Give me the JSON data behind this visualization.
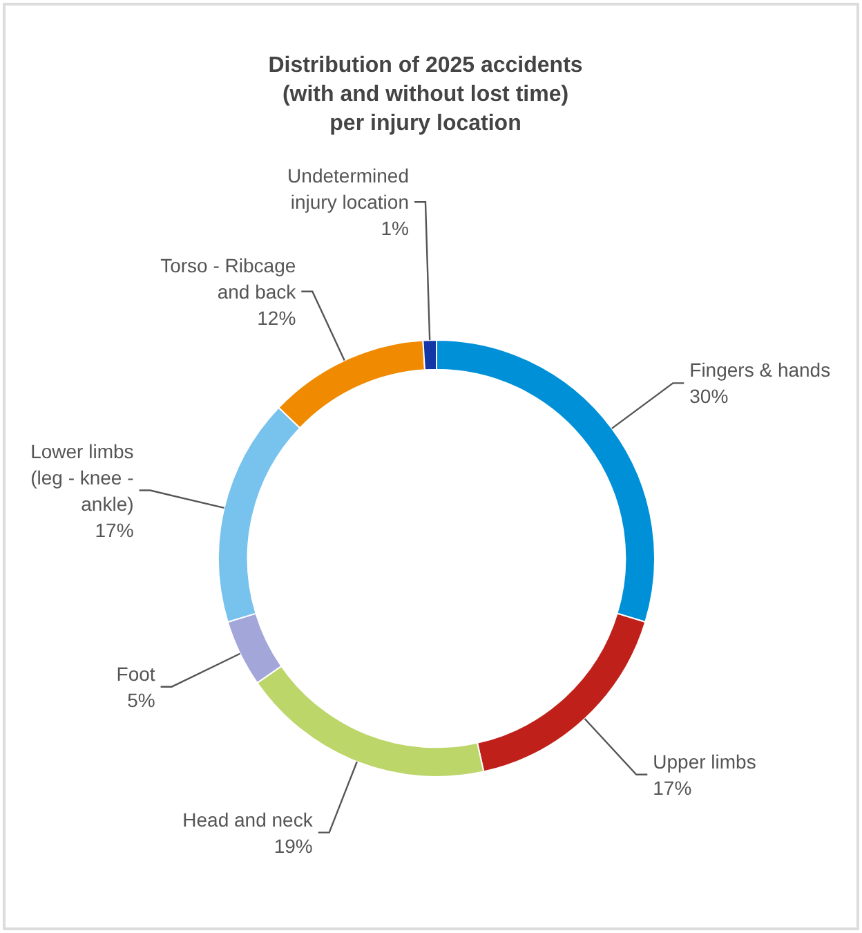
{
  "chart_data": {
    "type": "donut",
    "title": "Distribution of 2025 accidents\n(with and without lost time)\nper injury location",
    "categories": [
      "Fingers & hands",
      "Upper limbs",
      "Head and neck",
      "Foot",
      "Lower limbs (leg - knee - ankle)",
      "Torso - Ribcage and back",
      "Undetermined injury location"
    ],
    "values": [
      30,
      17,
      19,
      5,
      17,
      12,
      1
    ],
    "value_labels": [
      "30%",
      "17%",
      "19%",
      "5%",
      "17%",
      "12%",
      "1%"
    ],
    "colors": [
      "#0090d8",
      "#c0201a",
      "#bcd66a",
      "#a3a6d8",
      "#78c2ee",
      "#f08a00",
      "#1437a8"
    ]
  }
}
